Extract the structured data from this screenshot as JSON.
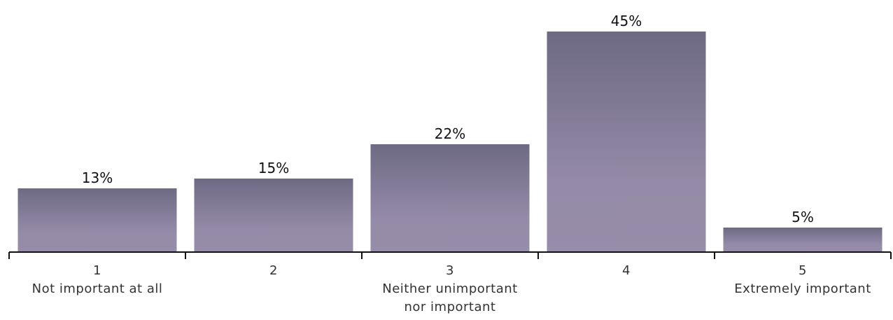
{
  "chart_data": {
    "type": "bar",
    "categories": [
      [
        "1",
        "Not important at all"
      ],
      [
        "2"
      ],
      [
        "3",
        "Neither unimportant",
        "nor important"
      ],
      [
        "4"
      ],
      [
        "5",
        "Extremely important"
      ]
    ],
    "values": [
      13,
      15,
      22,
      45,
      5
    ],
    "value_labels": [
      "13%",
      "15%",
      "22%",
      "45%",
      "5%"
    ],
    "ylim": [
      0,
      45
    ],
    "grid": false,
    "legend": "none",
    "colors": {
      "bar_top": "#6e6a84",
      "bar_bottom": "#958ba8",
      "axis": "#111111"
    }
  }
}
